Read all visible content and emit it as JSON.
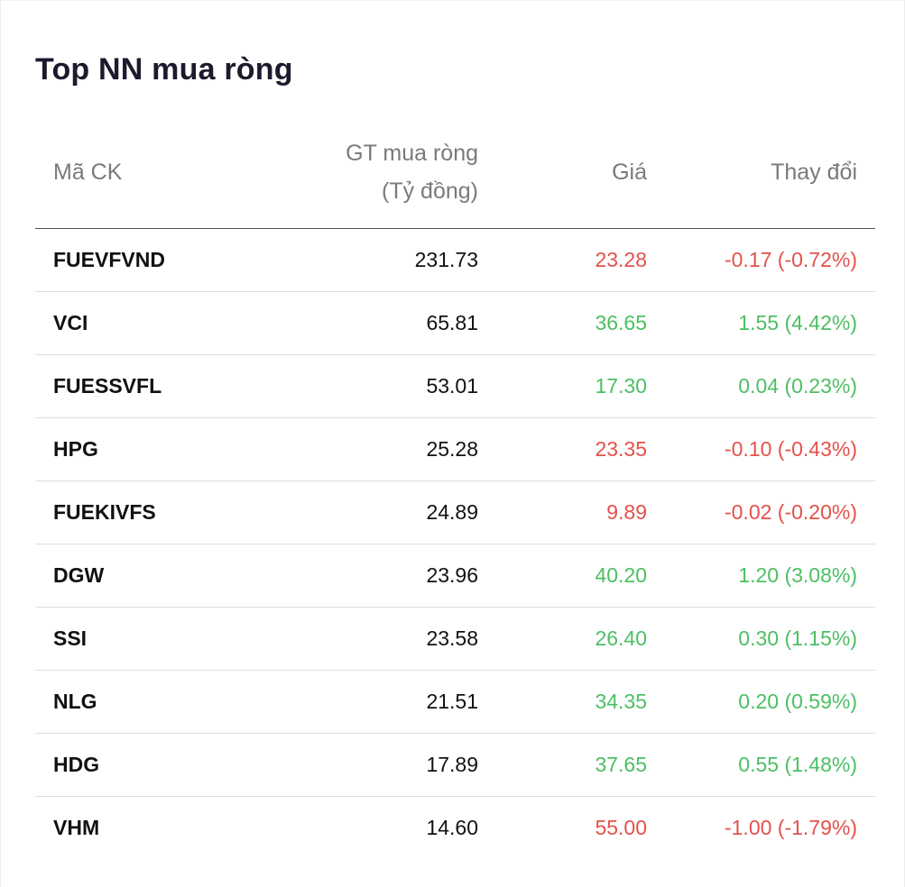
{
  "title": "Top NN mua ròng",
  "columns": {
    "symbol": "Mã CK",
    "value_line1": "GT mua ròng",
    "value_line2": "(Tỷ đồng)",
    "price": "Giá",
    "change": "Thay đổi"
  },
  "colors": {
    "up": "#4cbf63",
    "down": "#e4514a"
  },
  "rows": [
    {
      "symbol": "FUEVFVND",
      "value": "231.73",
      "price": "23.28",
      "change": "-0.17 (-0.72%)",
      "direction": "down"
    },
    {
      "symbol": "VCI",
      "value": "65.81",
      "price": "36.65",
      "change": "1.55 (4.42%)",
      "direction": "up"
    },
    {
      "symbol": "FUESSVFL",
      "value": "53.01",
      "price": "17.30",
      "change": "0.04 (0.23%)",
      "direction": "up"
    },
    {
      "symbol": "HPG",
      "value": "25.28",
      "price": "23.35",
      "change": "-0.10 (-0.43%)",
      "direction": "down"
    },
    {
      "symbol": "FUEKIVFS",
      "value": "24.89",
      "price": "9.89",
      "change": "-0.02 (-0.20%)",
      "direction": "down"
    },
    {
      "symbol": "DGW",
      "value": "23.96",
      "price": "40.20",
      "change": "1.20 (3.08%)",
      "direction": "up"
    },
    {
      "symbol": "SSI",
      "value": "23.58",
      "price": "26.40",
      "change": "0.30 (1.15%)",
      "direction": "up"
    },
    {
      "symbol": "NLG",
      "value": "21.51",
      "price": "34.35",
      "change": "0.20 (0.59%)",
      "direction": "up"
    },
    {
      "symbol": "HDG",
      "value": "17.89",
      "price": "37.65",
      "change": "0.55 (1.48%)",
      "direction": "up"
    },
    {
      "symbol": "VHM",
      "value": "14.60",
      "price": "55.00",
      "change": "-1.00 (-1.79%)",
      "direction": "down"
    }
  ]
}
